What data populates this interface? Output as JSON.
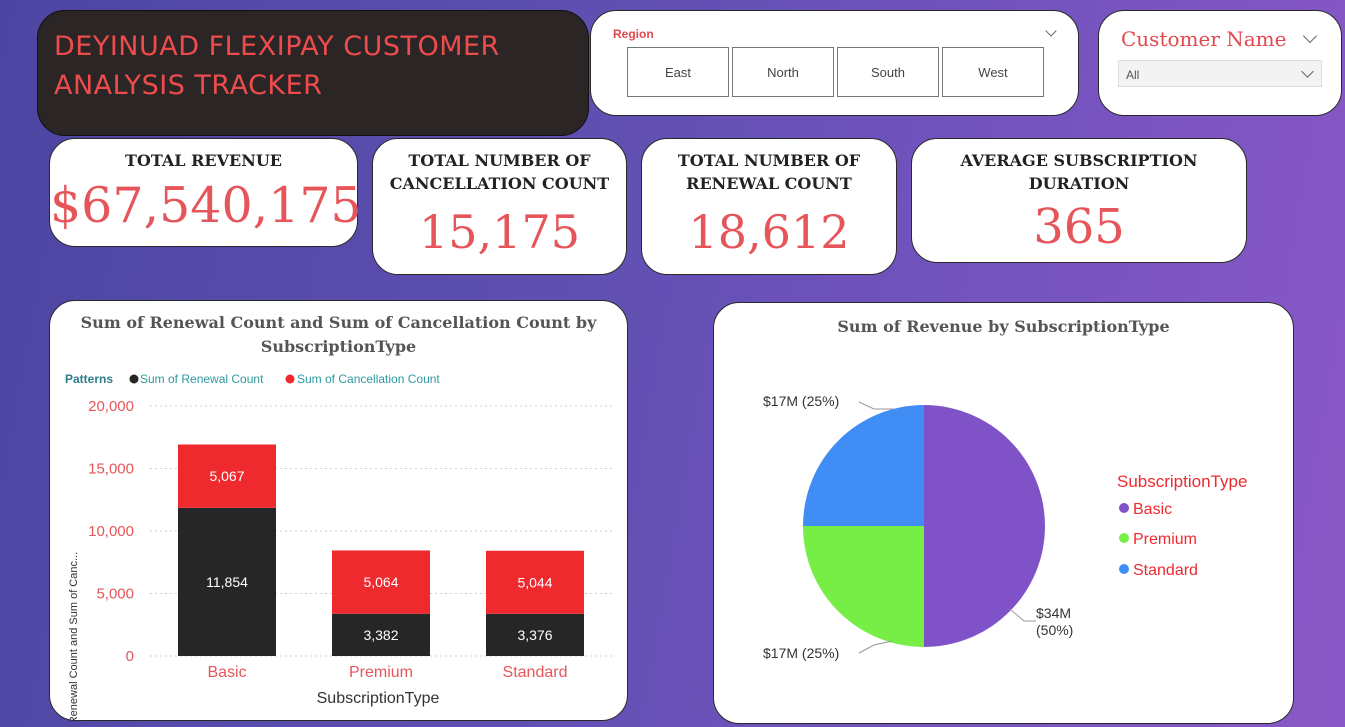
{
  "header": {
    "title": "DEYINUAD FLEXIPAY CUSTOMER ANALYSIS TRACKER"
  },
  "region_filter": {
    "label": "Region",
    "options": [
      "East",
      "North",
      "South",
      "West"
    ]
  },
  "customer_filter": {
    "label": "Customer Name",
    "value": "All"
  },
  "kpis": {
    "revenue": {
      "title": "TOTAL REVENUE",
      "value": "$67,540,175"
    },
    "cancellation": {
      "title": "TOTAL NUMBER OF CANCELLATION COUNT",
      "value": "15,175"
    },
    "renewal": {
      "title": "TOTAL NUMBER OF RENEWAL COUNT",
      "value": "18,612"
    },
    "duration": {
      "title": "AVERAGE SUBSCRIPTION DURATION",
      "value": "365"
    }
  },
  "colors": {
    "renewal": "#262626",
    "cancellation": "#ee2a2f",
    "basic": "#8052c8",
    "premium": "#76ee46",
    "standard": "#408ef5",
    "accent": "#e5555a"
  },
  "chart_data": [
    {
      "type": "bar",
      "stacked": true,
      "title": "Sum of Renewal Count and Sum of Cancellation Count by SubscriptionType",
      "legend_title": "Patterns",
      "xlabel": "SubscriptionType",
      "ylabel": "Sum of Renewal Count and Sum of Canc...",
      "categories": [
        "Basic",
        "Premium",
        "Standard"
      ],
      "series": [
        {
          "name": "Sum of Renewal Count",
          "values": [
            11854,
            3382,
            3376
          ],
          "labels": [
            "11,854",
            "3,382",
            "3,376"
          ]
        },
        {
          "name": "Sum of Cancellation Count",
          "values": [
            5067,
            5064,
            5044
          ],
          "labels": [
            "5,067",
            "5,064",
            "5,044"
          ]
        }
      ],
      "ylim": [
        0,
        20000
      ],
      "yticks": [
        "0",
        "5,000",
        "10,000",
        "15,000",
        "20,000"
      ],
      "legend_position": "top-left",
      "grid": true
    },
    {
      "type": "pie",
      "title": "Sum of Revenue by SubscriptionType",
      "legend_title": "SubscriptionType",
      "legend_position": "right",
      "slices": [
        {
          "name": "Basic",
          "value": 34,
          "label": "$34M",
          "percent_label": "(50%)"
        },
        {
          "name": "Premium",
          "value": 17,
          "label": "$17M (25%)"
        },
        {
          "name": "Standard",
          "value": 17,
          "label": "$17M (25%)"
        }
      ]
    }
  ]
}
